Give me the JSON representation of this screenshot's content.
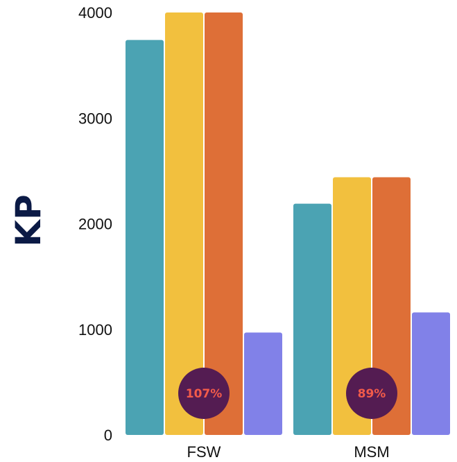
{
  "chart_data": {
    "type": "bar",
    "ylabel": "KP",
    "xlabel": "",
    "ylim": [
      0,
      4000
    ],
    "yticks": [
      0,
      1000,
      2000,
      3000,
      4000
    ],
    "categories": [
      "FSW",
      "MSM"
    ],
    "series": [
      {
        "color": "#4ba3b3",
        "values": [
          3740,
          2190
        ]
      },
      {
        "color": "#f2c03e",
        "values": [
          4000,
          2440
        ]
      },
      {
        "color": "#de6f37",
        "values": [
          4000,
          2440
        ]
      },
      {
        "color": "#8181e8",
        "values": [
          970,
          1160
        ]
      }
    ],
    "annotations": [
      {
        "category": "FSW",
        "text": "107%"
      },
      {
        "category": "MSM",
        "text": "89%"
      }
    ],
    "annotation_style": {
      "fill": "#541c52",
      "text_color": "#f25b4a"
    },
    "grid": false,
    "legend": "none"
  }
}
